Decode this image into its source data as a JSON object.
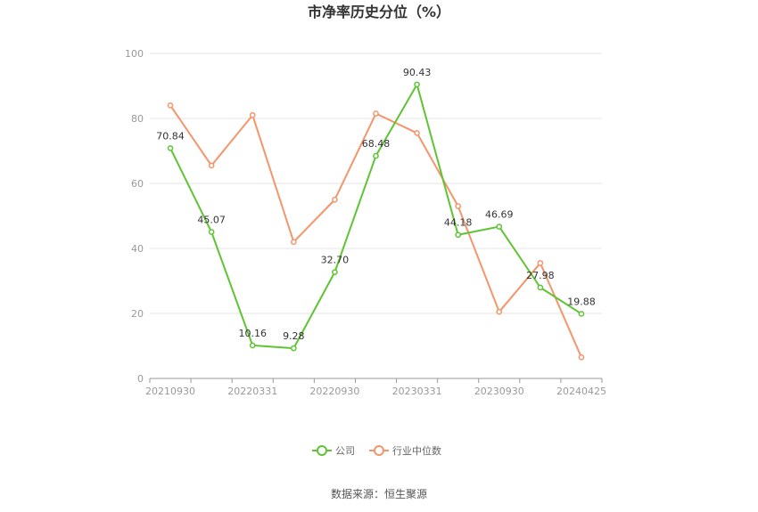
{
  "chart_data": {
    "type": "line",
    "title": "市净率历史分位（%）",
    "xlabel": "",
    "ylabel": "",
    "ylim": [
      0,
      100
    ],
    "yticks": [
      0,
      20,
      40,
      60,
      80,
      100
    ],
    "x": [
      "20210930",
      "20211231",
      "20220331",
      "20220630",
      "20220930",
      "20221231",
      "20230331",
      "20230630",
      "20230930",
      "20231231",
      "20240425"
    ],
    "xtick_labels": [
      "20210930",
      "",
      "20220331",
      "",
      "20220930",
      "",
      "20230331",
      "",
      "20230930",
      "",
      "20240425"
    ],
    "series": [
      {
        "name": "公司",
        "color": "#5ec433",
        "values": [
          70.84,
          45.07,
          10.16,
          9.28,
          32.7,
          68.48,
          90.43,
          44.18,
          46.69,
          27.98,
          19.88
        ],
        "labels": [
          "70.84",
          "45.07",
          "10.16",
          "9.28",
          "32.70",
          "68.48",
          "90.43",
          "44.18",
          "46.69",
          "27.98",
          "19.88"
        ]
      },
      {
        "name": "行业中位数",
        "color": "#f4956b",
        "values": [
          84.0,
          65.5,
          81.0,
          42.0,
          55.0,
          81.5,
          75.5,
          53.0,
          20.5,
          35.5,
          6.5
        ]
      }
    ],
    "grid": true,
    "legend": "bottom-center"
  },
  "footer": {
    "source": "数据来源：恒生聚源"
  }
}
